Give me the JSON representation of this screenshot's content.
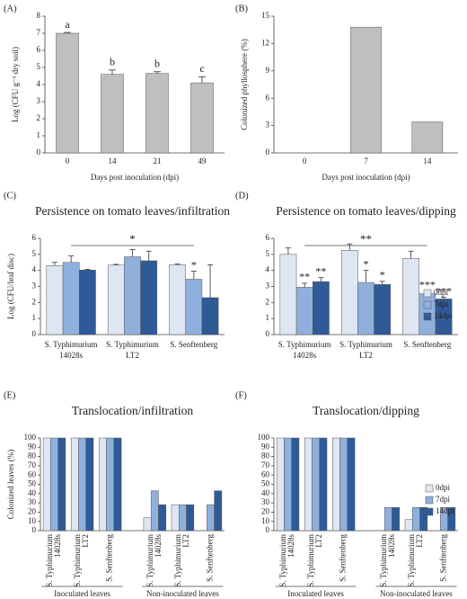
{
  "chart_data": [
    {
      "type": "bar",
      "panel_label": "(A)",
      "xlabel": "Days post inoculation (dpi)",
      "ylabel": "Log (CFU g⁻¹ dry soil)",
      "categories": [
        "0",
        "14",
        "21",
        "49"
      ],
      "values": [
        7.0,
        4.6,
        4.65,
        4.1
      ],
      "errors": [
        0.05,
        0.25,
        0.1,
        0.35
      ],
      "letters": [
        "a",
        "b",
        "b",
        "c"
      ],
      "color": "#bfbfbf",
      "ylim": [
        0,
        8
      ],
      "yticks": [
        0,
        1,
        2,
        3,
        4,
        5,
        6,
        7,
        8
      ]
    },
    {
      "type": "bar",
      "panel_label": "(B)",
      "xlabel": "Days post inoculation (dpi)",
      "ylabel": "Colonized phyllosphere (%)",
      "categories": [
        "0",
        "7",
        "14"
      ],
      "values": [
        0,
        13.8,
        3.4
      ],
      "color": "#bfbfbf",
      "ylim": [
        0,
        15
      ],
      "yticks": [
        0,
        3,
        6,
        9,
        12,
        15
      ]
    },
    {
      "type": "bar",
      "panel_label": "(C)",
      "title": "Persistence on tomato leaves/infiltration",
      "ylabel": "Log (CFU/leaf disc)",
      "categories": [
        [
          "S. Typhimurium",
          "14028s"
        ],
        [
          "S. Typhimurium",
          "LT2"
        ],
        [
          "S. Senftenberg"
        ]
      ],
      "series": [
        {
          "name": "0dpi",
          "color": "#dde6f2",
          "values": [
            4.3,
            4.33,
            4.35
          ],
          "errors": [
            0.2,
            0.05,
            0.05
          ],
          "significance": [
            null,
            null,
            null
          ]
        },
        {
          "name": "7dpi",
          "color": "#8fb0dc",
          "values": [
            4.5,
            4.85,
            3.45
          ],
          "errors": [
            0.4,
            0.45,
            0.5
          ],
          "significance": [
            null,
            null,
            "*"
          ]
        },
        {
          "name": "14dpi",
          "color": "#2e5a97",
          "values": [
            4.02,
            4.6,
            2.3
          ],
          "errors": [
            0.05,
            0.6,
            2.05
          ],
          "significance": [
            null,
            null,
            null
          ]
        }
      ],
      "bracket_label": "*",
      "ylim": [
        0,
        6
      ],
      "yticks": [
        0,
        1,
        2,
        3,
        4,
        5,
        6
      ]
    },
    {
      "type": "bar",
      "panel_label": "(D)",
      "title": "Persistence on tomato leaves/dipping",
      "categories": [
        [
          "S. Typhimurium",
          "14028s"
        ],
        [
          "S. Typhimurium",
          "LT2"
        ],
        [
          "S. Senftenberg"
        ]
      ],
      "series": [
        {
          "name": "0dpi",
          "color": "#dde6f2",
          "values": [
            5.0,
            5.25,
            4.75
          ],
          "errors": [
            0.4,
            0.4,
            0.45
          ],
          "significance": [
            null,
            null,
            null
          ]
        },
        {
          "name": "7dpi",
          "color": "#8fb0dc",
          "values": [
            2.95,
            3.25,
            2.55
          ],
          "errors": [
            0.25,
            0.75,
            0.15
          ],
          "significance": [
            "**",
            "*",
            "***"
          ]
        },
        {
          "name": "14dpi",
          "color": "#2e5a97",
          "values": [
            3.3,
            3.12,
            2.22
          ],
          "errors": [
            0.25,
            0.2,
            0.1
          ],
          "significance": [
            "**",
            "*",
            "***"
          ]
        }
      ],
      "bracket_label": "**",
      "legend": true,
      "ylim": [
        0,
        6
      ],
      "yticks": [
        0,
        1,
        2,
        3,
        4,
        5,
        6
      ]
    },
    {
      "type": "bar",
      "panel_label": "(E)",
      "title": "Translocation/infiltration",
      "ylabel": "Colonized leaves (%)",
      "categories": [
        [
          "S. Typhimurium",
          "14028s"
        ],
        [
          "S. Typhimurium",
          "LT2"
        ],
        [
          "S. Senftenberg"
        ],
        [
          "S. Typhimurium",
          "14028s"
        ],
        [
          "S. Typhimurium",
          "LT2"
        ],
        [
          "S. Senftenberg"
        ]
      ],
      "groups": [
        "Inoculated leaves",
        "Non-inoculated leaves"
      ],
      "series": [
        {
          "name": "0dpi",
          "color": "#dde6f2",
          "values": [
            100,
            100,
            100,
            14,
            28,
            0
          ]
        },
        {
          "name": "7dpi",
          "color": "#8fb0dc",
          "values": [
            100,
            100,
            100,
            43,
            28,
            28
          ]
        },
        {
          "name": "14dpi",
          "color": "#2e5a97",
          "values": [
            100,
            100,
            100,
            28,
            28,
            43
          ]
        }
      ],
      "ylim": [
        0,
        100
      ],
      "yticks": [
        0,
        10,
        20,
        30,
        40,
        50,
        60,
        70,
        80,
        90,
        100
      ]
    },
    {
      "type": "bar",
      "panel_label": "(F)",
      "title": "Translocation/dipping",
      "categories": [
        [
          "S. Typhimurium",
          "14028s"
        ],
        [
          "S. Typhimurium",
          "LT2"
        ],
        [
          "S. Senftenberg"
        ],
        [
          "S. Typhimurium",
          "14028s"
        ],
        [
          "S. Typhimurium",
          "LT2"
        ],
        [
          "S. Senftenberg"
        ]
      ],
      "groups": [
        "Inoculated leaves",
        "Non-inoculated leaves"
      ],
      "series": [
        {
          "name": "0dpi",
          "color": "#dde6f2",
          "values": [
            100,
            100,
            100,
            0,
            12,
            0
          ]
        },
        {
          "name": "7dpi",
          "color": "#8fb0dc",
          "values": [
            100,
            100,
            100,
            25,
            25,
            25
          ]
        },
        {
          "name": "14dpi",
          "color": "#2e5a97",
          "values": [
            100,
            100,
            100,
            25,
            25,
            25
          ]
        }
      ],
      "legend": true,
      "ylim": [
        0,
        100
      ],
      "yticks": [
        0,
        10,
        20,
        30,
        40,
        50,
        60,
        70,
        80,
        90,
        100
      ]
    }
  ]
}
